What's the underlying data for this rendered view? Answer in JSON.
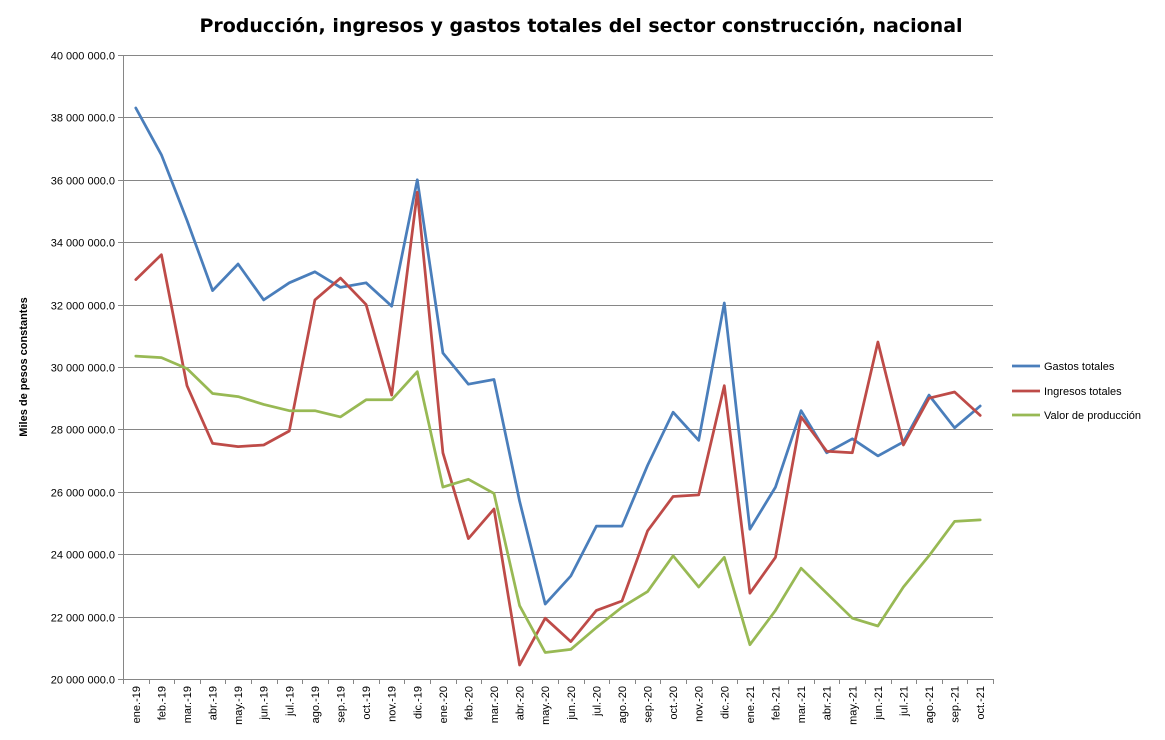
{
  "chart_data": {
    "type": "line",
    "title": "Producción, ingresos y gastos totales del sector construcción, nacional",
    "ylabel": "Miles de pesos constantes",
    "xlabel": "",
    "ylim": [
      20000000,
      40000000
    ],
    "yticks": [
      20000000,
      22000000,
      24000000,
      26000000,
      28000000,
      30000000,
      32000000,
      34000000,
      36000000,
      38000000,
      40000000
    ],
    "ytick_labels": [
      "20 000 000.0",
      "22 000 000.0",
      "24 000 000.0",
      "26 000 000.0",
      "28 000 000.0",
      "30 000 000.0",
      "32 000 000.0",
      "34 000 000.0",
      "36 000 000.0",
      "38 000 000.0",
      "40 000 000.0"
    ],
    "grid": true,
    "legend_position": "right",
    "categories": [
      "ene.-19",
      "feb.-19",
      "mar.-19",
      "abr.-19",
      "may.-19",
      "jun.-19",
      "jul.-19",
      "ago.-19",
      "sep.-19",
      "oct.-19",
      "nov.-19",
      "dic.-19",
      "ene.-20",
      "feb.-20",
      "mar.-20",
      "abr.-20",
      "may.-20",
      "jun.-20",
      "jul.-20",
      "ago.-20",
      "sep.-20",
      "oct.-20",
      "nov.-20",
      "dic.-20",
      "ene.-21",
      "feb.-21",
      "mar.-21",
      "abr.-21",
      "may.-21",
      "jun.-21",
      "jul.-21",
      "ago.-21",
      "sep.-21",
      "oct.-21"
    ],
    "series": [
      {
        "name": "Gastos totales",
        "color": "#4a7ebb",
        "values": [
          38300000,
          36800000,
          34700000,
          32450000,
          33300000,
          32150000,
          32700000,
          33050000,
          32550000,
          32700000,
          31950000,
          36000000,
          30450000,
          29450000,
          29600000,
          25700000,
          22400000,
          23300000,
          24900000,
          24900000,
          26850000,
          28550000,
          27650000,
          32050000,
          24800000,
          26150000,
          28600000,
          27250000,
          27700000,
          27150000,
          27600000,
          29100000,
          28050000,
          28750000
        ]
      },
      {
        "name": "Ingresos totales",
        "color": "#be4b48",
        "values": [
          32800000,
          33600000,
          29400000,
          27550000,
          27450000,
          27500000,
          27950000,
          32150000,
          32850000,
          32000000,
          29100000,
          35600000,
          27250000,
          24500000,
          25450000,
          20450000,
          21950000,
          21200000,
          22200000,
          22500000,
          24750000,
          25850000,
          25900000,
          29400000,
          22750000,
          23900000,
          28400000,
          27300000,
          27250000,
          30800000,
          27500000,
          29000000,
          29200000,
          28450000
        ]
      },
      {
        "name": "Valor de producción",
        "color": "#98b954",
        "values": [
          30350000,
          30300000,
          29950000,
          29150000,
          29050000,
          28800000,
          28600000,
          28600000,
          28400000,
          28950000,
          28950000,
          29850000,
          26150000,
          26400000,
          25950000,
          22350000,
          20850000,
          20950000,
          21650000,
          22300000,
          22800000,
          23950000,
          22950000,
          23900000,
          21100000,
          22200000,
          23550000,
          22750000,
          21950000,
          21700000,
          22950000,
          23950000,
          25050000,
          25100000
        ]
      }
    ]
  }
}
